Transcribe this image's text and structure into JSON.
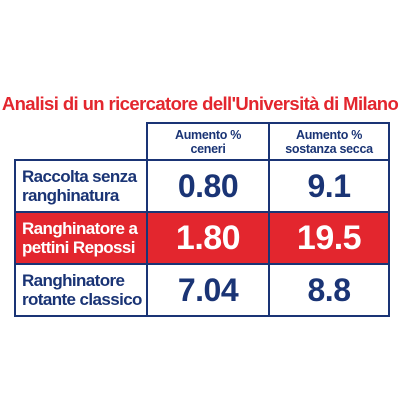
{
  "chart_data": {
    "type": "table",
    "title": "Analisi di un ricercatore dell'Università di Milano",
    "columns": [
      "Aumento % ceneri",
      "Aumento % sostanza secca"
    ],
    "rows": [
      {
        "label": "Raccolta senza ranghinatura",
        "values": [
          "0.80",
          "9.1"
        ],
        "highlight": false
      },
      {
        "label": "Ranghinatore a pettini Repossi",
        "values": [
          "1.80",
          "19.5"
        ],
        "highlight": true
      },
      {
        "label": "Ranghinatore rotante classico",
        "values": [
          "7.04",
          "8.8"
        ],
        "highlight": false
      }
    ],
    "colors": {
      "accent_red": "#e3262e",
      "navy": "#1a3475",
      "background": "#ffffff"
    }
  }
}
